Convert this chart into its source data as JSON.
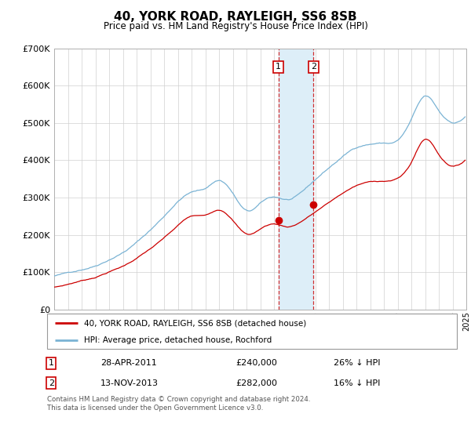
{
  "title": "40, YORK ROAD, RAYLEIGH, SS6 8SB",
  "subtitle": "Price paid vs. HM Land Registry's House Price Index (HPI)",
  "legend_line1": "40, YORK ROAD, RAYLEIGH, SS6 8SB (detached house)",
  "legend_line2": "HPI: Average price, detached house, Rochford",
  "transaction1_date": "28-APR-2011",
  "transaction1_price": "£240,000",
  "transaction1_hpi": "26% ↓ HPI",
  "transaction2_date": "13-NOV-2013",
  "transaction2_price": "£282,000",
  "transaction2_hpi": "16% ↓ HPI",
  "footer": "Contains HM Land Registry data © Crown copyright and database right 2024.\nThis data is licensed under the Open Government Licence v3.0.",
  "hpi_color": "#7ab3d4",
  "price_color": "#cc0000",
  "vline_color": "#cc0000",
  "shade_color": "#ddeef8",
  "ylim": [
    0,
    700000
  ],
  "yticks": [
    0,
    100000,
    200000,
    300000,
    400000,
    500000,
    600000,
    700000
  ],
  "xlim_start": 1995,
  "xlim_end": 2025,
  "transaction1_x": 2011.32,
  "transaction2_x": 2013.87,
  "transaction1_price_val": 240000,
  "transaction2_price_val": 282000
}
